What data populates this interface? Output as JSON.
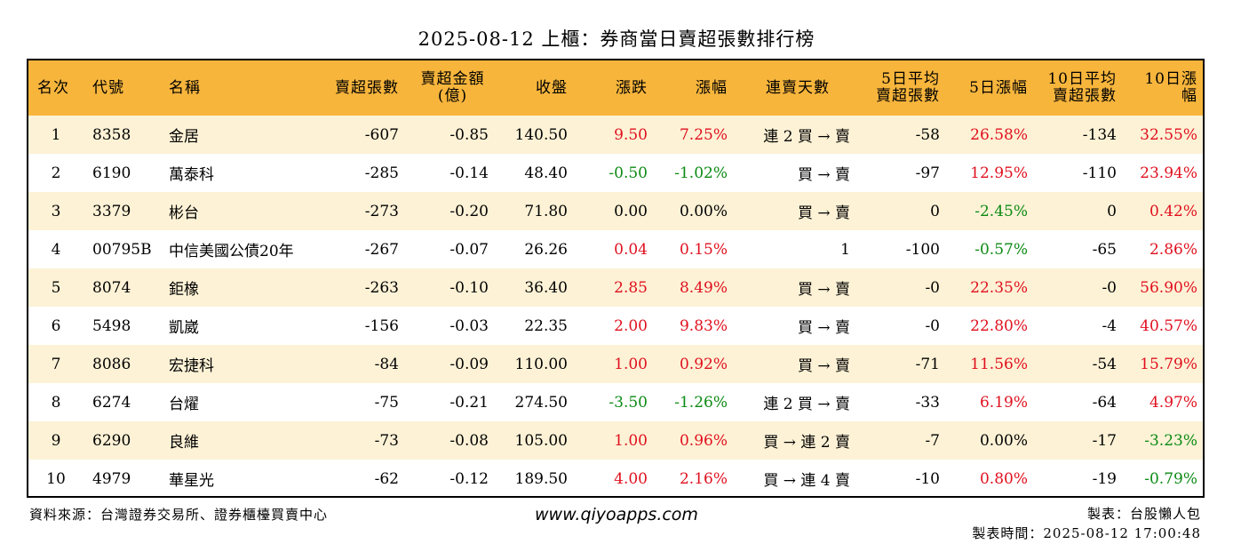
{
  "title": "2025-08-12 上櫃：券商當日賣超張數排行榜",
  "headers": {
    "rank": "名次",
    "code": "代號",
    "name": "名稱",
    "net_sell": "賣超張數",
    "amount_l1": "賣超金額",
    "amount_l2": "(億)",
    "close": "收盤",
    "change": "漲跌",
    "change_pct": "漲幅",
    "streak": "連賣天數",
    "avg5_l1": "5日平均",
    "avg5_l2": "賣超張數",
    "pct5": "5日漲幅",
    "avg10_l1": "10日平均",
    "avg10_l2": "賣超張數",
    "pct10": "10日漲幅"
  },
  "colors": {
    "header_bg": "#f7b53c",
    "stripe_bg": "#fdf2d6",
    "up": "#e0101e",
    "down": "#0c8a14"
  },
  "rows": [
    {
      "rank": "1",
      "code": "8358",
      "name": "金居",
      "net_sell": "-607",
      "amount": "-0.85",
      "close": "140.50",
      "change": "9.50",
      "change_pct": "7.25%",
      "streak": "連 2 買 → 賣",
      "avg5": "-58",
      "pct5": "26.58%",
      "avg10": "-134",
      "pct10": "32.55%",
      "change_color": "red",
      "pct5_color": "red",
      "pct10_color": "red"
    },
    {
      "rank": "2",
      "code": "6190",
      "name": "萬泰科",
      "net_sell": "-285",
      "amount": "-0.14",
      "close": "48.40",
      "change": "-0.50",
      "change_pct": "-1.02%",
      "streak": "買 → 賣",
      "avg5": "-97",
      "pct5": "12.95%",
      "avg10": "-110",
      "pct10": "23.94%",
      "change_color": "green",
      "pct5_color": "red",
      "pct10_color": "red"
    },
    {
      "rank": "3",
      "code": "3379",
      "name": "彬台",
      "net_sell": "-273",
      "amount": "-0.20",
      "close": "71.80",
      "change": "0.00",
      "change_pct": "0.00%",
      "streak": "買 → 賣",
      "avg5": "0",
      "pct5": "-2.45%",
      "avg10": "0",
      "pct10": "0.42%",
      "change_color": "black",
      "pct5_color": "green",
      "pct10_color": "red"
    },
    {
      "rank": "4",
      "code": "00795B",
      "name": "中信美國公債20年",
      "net_sell": "-267",
      "amount": "-0.07",
      "close": "26.26",
      "change": "0.04",
      "change_pct": "0.15%",
      "streak": "1",
      "avg5": "-100",
      "pct5": "-0.57%",
      "avg10": "-65",
      "pct10": "2.86%",
      "change_color": "red",
      "pct5_color": "green",
      "pct10_color": "red"
    },
    {
      "rank": "5",
      "code": "8074",
      "name": "鉅橡",
      "net_sell": "-263",
      "amount": "-0.10",
      "close": "36.40",
      "change": "2.85",
      "change_pct": "8.49%",
      "streak": "買 → 賣",
      "avg5": "-0",
      "pct5": "22.35%",
      "avg10": "-0",
      "pct10": "56.90%",
      "change_color": "red",
      "pct5_color": "red",
      "pct10_color": "red"
    },
    {
      "rank": "6",
      "code": "5498",
      "name": "凱崴",
      "net_sell": "-156",
      "amount": "-0.03",
      "close": "22.35",
      "change": "2.00",
      "change_pct": "9.83%",
      "streak": "買 → 賣",
      "avg5": "-0",
      "pct5": "22.80%",
      "avg10": "-4",
      "pct10": "40.57%",
      "change_color": "red",
      "pct5_color": "red",
      "pct10_color": "red"
    },
    {
      "rank": "7",
      "code": "8086",
      "name": "宏捷科",
      "net_sell": "-84",
      "amount": "-0.09",
      "close": "110.00",
      "change": "1.00",
      "change_pct": "0.92%",
      "streak": "買 → 賣",
      "avg5": "-71",
      "pct5": "11.56%",
      "avg10": "-54",
      "pct10": "15.79%",
      "change_color": "red",
      "pct5_color": "red",
      "pct10_color": "red"
    },
    {
      "rank": "8",
      "code": "6274",
      "name": "台燿",
      "net_sell": "-75",
      "amount": "-0.21",
      "close": "274.50",
      "change": "-3.50",
      "change_pct": "-1.26%",
      "streak": "連 2 買 → 賣",
      "avg5": "-33",
      "pct5": "6.19%",
      "avg10": "-64",
      "pct10": "4.97%",
      "change_color": "green",
      "pct5_color": "red",
      "pct10_color": "red"
    },
    {
      "rank": "9",
      "code": "6290",
      "name": "良維",
      "net_sell": "-73",
      "amount": "-0.08",
      "close": "105.00",
      "change": "1.00",
      "change_pct": "0.96%",
      "streak": "買 → 連 2 賣",
      "avg5": "-7",
      "pct5": "0.00%",
      "avg10": "-17",
      "pct10": "-3.23%",
      "change_color": "red",
      "pct5_color": "black",
      "pct10_color": "green"
    },
    {
      "rank": "10",
      "code": "4979",
      "name": "華星光",
      "net_sell": "-62",
      "amount": "-0.12",
      "close": "189.50",
      "change": "4.00",
      "change_pct": "2.16%",
      "streak": "買 → 連 4 賣",
      "avg5": "-10",
      "pct5": "0.80%",
      "avg10": "-19",
      "pct10": "-0.79%",
      "change_color": "red",
      "pct5_color": "red",
      "pct10_color": "green"
    }
  ],
  "footer": {
    "source": "資料來源：台灣證券交易所、證券櫃檯買賣中心",
    "website": "www.qiyoapps.com",
    "author": "製表：台股懶人包",
    "made_time": "製表時間：2025-08-12 17:00:48"
  }
}
